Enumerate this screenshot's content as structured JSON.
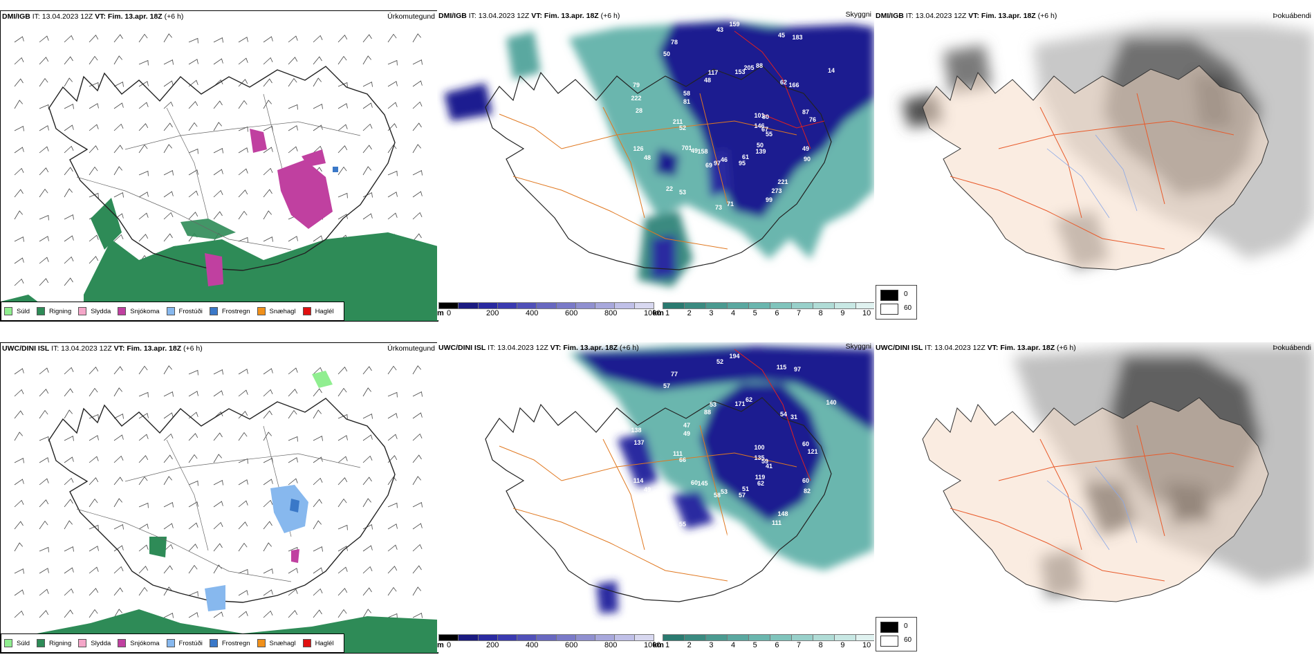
{
  "rows": [
    {
      "precip": {
        "header_bold": "DMI/IGB",
        "header_it": "IT: 13.04.2023 12Z",
        "header_vt_bold": "VT: Fim. 13.apr. 18Z",
        "header_lead": "(+6 h)",
        "title": "Úrkomutegund"
      },
      "visibility": {
        "header_bold": "DMI/IGB",
        "header_it": "IT: 13.04.2023 12Z",
        "header_vt_bold": "VT: Fim. 13.apr. 18Z",
        "header_lead": "(+6 h)",
        "title": "Skyggni",
        "labels": [
          "146",
          "158",
          "153",
          "221",
          "28",
          "14",
          "46",
          "48",
          "49",
          "48",
          "45",
          "61",
          "81",
          "87",
          "53",
          "43",
          "50",
          "52",
          "62",
          "71",
          "50",
          "67",
          "49",
          "205",
          "273",
          "222",
          "101",
          "97",
          "117",
          "90",
          "126",
          "183",
          "95",
          "58",
          "76",
          "22",
          "159",
          "139",
          "211",
          "166",
          "73",
          "78",
          "55",
          "701",
          "88",
          "99",
          "79",
          "80",
          "69"
        ]
      },
      "fog": {
        "header_bold": "DMI/IGB",
        "header_it": "IT: 13.04.2023 12Z",
        "header_vt_bold": "VT: Fim. 13.apr. 18Z",
        "header_lead": "(+6 h)",
        "title": "Þokuábendi"
      }
    },
    {
      "precip": {
        "header_bold": "UWC/DINI ISL",
        "header_it": "IT: 13.04.2023 12Z",
        "header_vt_bold": "VT: Fim. 13.apr. 18Z",
        "header_lead": "(+6 h)",
        "title": "Úrkomutegund"
      },
      "visibility": {
        "header_bold": "UWC/DINI ISL",
        "header_it": "IT: 13.04.2023 12Z",
        "header_vt_bold": "VT: Fim. 13.apr. 18Z",
        "header_lead": "(+6 h)",
        "title": "Skyggni",
        "labels": [
          "135",
          "145",
          "171",
          "148",
          "137",
          "140",
          "53",
          "88",
          "60",
          "49",
          "115",
          "51",
          "49",
          "60",
          "55",
          "52",
          "119",
          "66",
          "54",
          "55",
          "57",
          "59",
          "60",
          "62",
          "111",
          "138",
          "100",
          "58",
          "53",
          "82",
          "114",
          "97",
          "57",
          "47",
          "121",
          "60",
          "194",
          "62",
          "111",
          "31",
          "108",
          "77",
          "41"
        ]
      },
      "fog": {
        "header_bold": "UWC/DINI ISL",
        "header_it": "IT: 13.04.2023 12Z",
        "header_vt_bold": "VT: Fim. 13.apr. 18Z",
        "header_lead": "(+6 h)",
        "title": "Þokuábendi"
      }
    }
  ],
  "precip_legend": [
    {
      "label": "Súld",
      "color": "#90ee90"
    },
    {
      "label": "Rigning",
      "color": "#2e8b57"
    },
    {
      "label": "Slydda",
      "color": "#f4a6c8"
    },
    {
      "label": "Snjókoma",
      "color": "#c040a0"
    },
    {
      "label": "Frostúði",
      "color": "#87b8ee"
    },
    {
      "label": "Frostregn",
      "color": "#3a78c8"
    },
    {
      "label": "Snæhagl",
      "color": "#f0901a"
    },
    {
      "label": "Haglél",
      "color": "#e01010"
    }
  ],
  "cloud_base_scale": {
    "unit": "m",
    "ticks": [
      "0",
      "200",
      "400",
      "600",
      "800",
      "1000"
    ],
    "colors": [
      "#000000",
      "#1a1a80",
      "#2a2aa0",
      "#3a3ab0",
      "#5050b8",
      "#6868c0",
      "#7a7ac8",
      "#9090d0",
      "#a8a8dc",
      "#c0c0e8",
      "#d8d8f0"
    ]
  },
  "visibility_scale": {
    "unit": "km",
    "ticks": [
      "1",
      "2",
      "3",
      "4",
      "5",
      "6",
      "7",
      "8",
      "9",
      "10"
    ],
    "colors": [
      "#2a7a70",
      "#3a8a80",
      "#4a9a90",
      "#5aa8a0",
      "#6ab6ae",
      "#80c4bc",
      "#98d0ca",
      "#b0dcd6",
      "#c8e8e4",
      "#e0f2f0"
    ]
  },
  "fog_legend": [
    {
      "label": "0",
      "color": "#000000"
    },
    {
      "label": "60",
      "color": "#ffffff"
    }
  ]
}
